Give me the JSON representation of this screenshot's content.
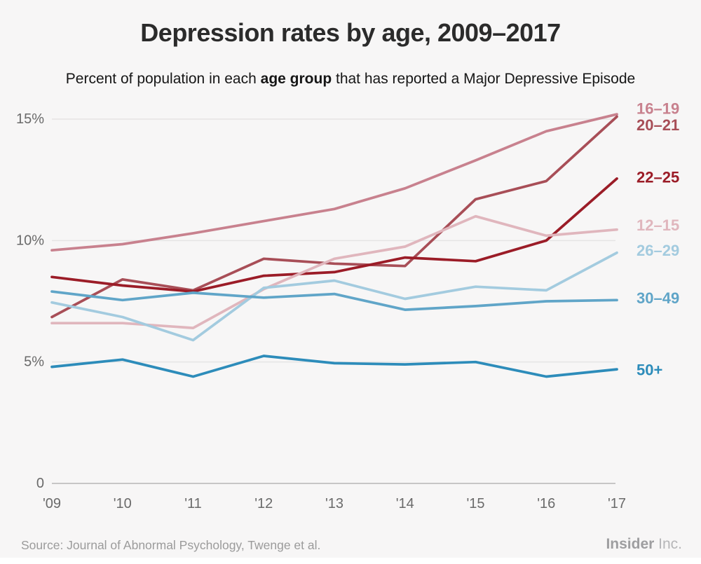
{
  "page": {
    "background": "#f7f6f6"
  },
  "header": {
    "title": "Depression rates by age, 2009–2017",
    "subtitle_prefix": "Percent of population in each ",
    "subtitle_bold": "age group",
    "subtitle_suffix": " that has reported a Major Depressive Episode"
  },
  "chart_data": {
    "type": "line",
    "title": "Depression rates by age, 2009–2017",
    "xlabel": "",
    "ylabel": "",
    "x": [
      2009,
      2010,
      2011,
      2012,
      2013,
      2014,
      2015,
      2016,
      2017
    ],
    "x_labels": [
      "'09",
      "'10",
      "'11",
      "'12",
      "'13",
      "'14",
      "'15",
      "'16",
      "'17"
    ],
    "ylim": [
      0,
      16.5
    ],
    "grid": "horizontal",
    "legend_position": "right-line-ends",
    "y_ticks": [
      {
        "value": 15,
        "label": "15%"
      },
      {
        "value": 10,
        "label": "10%"
      },
      {
        "value": 5,
        "label": "5%"
      },
      {
        "value": 0,
        "label": "0"
      }
    ],
    "series": [
      {
        "name": "16–19",
        "color": "#c8818e",
        "label_dy": -8,
        "values": [
          9.6,
          9.85,
          10.3,
          10.8,
          11.3,
          12.15,
          13.3,
          14.5,
          15.2
        ]
      },
      {
        "name": "20–21",
        "color": "#a84e57",
        "label_dy": 12,
        "values": [
          6.85,
          8.4,
          7.95,
          9.25,
          9.05,
          8.95,
          11.7,
          12.45,
          15.1
        ]
      },
      {
        "name": "22–25",
        "color": "#9b1c27",
        "label_dy": -2,
        "values": [
          8.5,
          8.15,
          7.9,
          8.55,
          8.7,
          9.3,
          9.15,
          10.0,
          12.55
        ]
      },
      {
        "name": "12–15",
        "color": "#e0b6bd",
        "label_dy": -6,
        "values": [
          6.6,
          6.6,
          6.4,
          8.0,
          9.25,
          9.75,
          11.0,
          10.2,
          10.45
        ]
      },
      {
        "name": "26–29",
        "color": "#a3cbdf",
        "label_dy": -3,
        "values": [
          7.45,
          6.85,
          5.9,
          8.05,
          8.35,
          7.6,
          8.1,
          7.95,
          9.5
        ]
      },
      {
        "name": "30–49",
        "color": "#60a5c8",
        "label_dy": -3,
        "values": [
          7.9,
          7.55,
          7.85,
          7.65,
          7.8,
          7.15,
          7.3,
          7.5,
          7.55
        ]
      },
      {
        "name": "50+",
        "color": "#2d8cba",
        "label_dy": 1,
        "values": [
          4.8,
          5.1,
          4.4,
          5.25,
          4.95,
          4.9,
          5.0,
          4.4,
          4.7
        ]
      }
    ],
    "axis_colors": {
      "tick_text": "#6a6a6a",
      "gridline": "#e5e4e4",
      "zero_line": "#c7c6c6"
    }
  },
  "footer": {
    "source": "Source: Journal of Abnormal Psychology, Twenge et al.",
    "brand_bold": "Insider",
    "brand_light": " Inc."
  }
}
